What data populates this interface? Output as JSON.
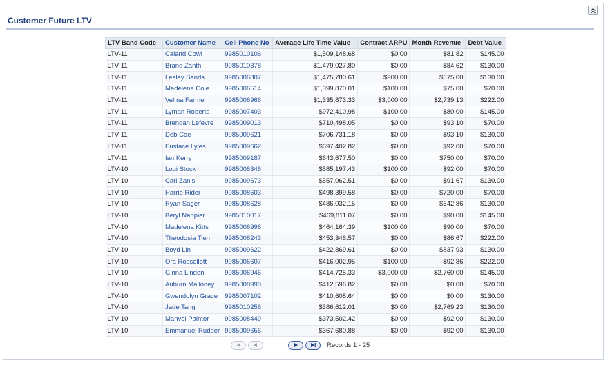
{
  "panel": {
    "title": "Customer Future LTV"
  },
  "table": {
    "headers": [
      "LTV Band Code",
      "Customer Name",
      "Cell Phone No",
      "Average Life Time Value",
      "Contract ARPU",
      "Month Revenue",
      "Debt Value"
    ],
    "rows": [
      [
        "LTV-11",
        "Caland Cowl",
        "9985010106",
        "$1,509,148.68",
        "$0.00",
        "$81.82",
        "$145.00"
      ],
      [
        "LTV-11",
        "Brand Zanth",
        "9985010378",
        "$1,479,027.80",
        "$0.00",
        "$84.62",
        "$130.00"
      ],
      [
        "LTV-11",
        "Lesley Sands",
        "9985006807",
        "$1,475,780.61",
        "$900.00",
        "$675.00",
        "$130.00"
      ],
      [
        "LTV-11",
        "Madelena Cole",
        "9985006514",
        "$1,399,870.01",
        "$100.00",
        "$75.00",
        "$70.00"
      ],
      [
        "LTV-11",
        "Velma Farmer",
        "9985006966",
        "$1,335,873.33",
        "$3,000.00",
        "$2,739.13",
        "$222.00"
      ],
      [
        "LTV-11",
        "Lyman Roberts",
        "9985007403",
        "$972,410.98",
        "$100.00",
        "$80.00",
        "$145.00"
      ],
      [
        "LTV-11",
        "Brendan Lefevre",
        "9985009013",
        "$710,498.05",
        "$0.00",
        "$93.10",
        "$70.00"
      ],
      [
        "LTV-11",
        "Deb Coe",
        "9985009621",
        "$706,731.18",
        "$0.00",
        "$93.10",
        "$130.00"
      ],
      [
        "LTV-11",
        "Eustace Lyles",
        "9985009662",
        "$697,402.82",
        "$0.00",
        "$92.00",
        "$70.00"
      ],
      [
        "LTV-11",
        "Ian Kerry",
        "9985009187",
        "$643,677.50",
        "$0.00",
        "$750.00",
        "$70.00"
      ],
      [
        "LTV-10",
        "Loui Stock",
        "9985006346",
        "$585,197.43",
        "$100.00",
        "$92.00",
        "$70.00"
      ],
      [
        "LTV-10",
        "Carl Zanis",
        "9985009673",
        "$557,062.51",
        "$0.00",
        "$91.67",
        "$130.00"
      ],
      [
        "LTV-10",
        "Harrie Rider",
        "9985008603",
        "$498,399.58",
        "$0.00",
        "$720.00",
        "$70.00"
      ],
      [
        "LTV-10",
        "Ryan Sager",
        "9985008628",
        "$486,032.15",
        "$0.00",
        "$642.86",
        "$130.00"
      ],
      [
        "LTV-10",
        "Beryl Nappier",
        "9985010017",
        "$469,811.07",
        "$0.00",
        "$90.00",
        "$145.00"
      ],
      [
        "LTV-10",
        "Madelena Kitts",
        "9985006996",
        "$464,164.39",
        "$100.00",
        "$90.00",
        "$70.00"
      ],
      [
        "LTV-10",
        "Theodosia Tien",
        "9985008243",
        "$453,346.57",
        "$0.00",
        "$86.67",
        "$222.00"
      ],
      [
        "LTV-10",
        "Boyd Lin",
        "9985009622",
        "$422,869.61",
        "$0.00",
        "$837.93",
        "$130.00"
      ],
      [
        "LTV-10",
        "Ora Rossellett",
        "9985006607",
        "$416,002.95",
        "$100.00",
        "$92.86",
        "$222.00"
      ],
      [
        "LTV-10",
        "Ginna Linden",
        "9985006946",
        "$414,725.33",
        "$3,000.00",
        "$2,760.00",
        "$145.00"
      ],
      [
        "LTV-10",
        "Auburn Malloney",
        "9985008990",
        "$412,596.82",
        "$0.00",
        "$0.00",
        "$70.00"
      ],
      [
        "LTV-10",
        "Gwendolyn Grace",
        "9985007102",
        "$410,608.64",
        "$0.00",
        "$0.00",
        "$130.00"
      ],
      [
        "LTV-10",
        "Jade Tang",
        "9985010256",
        "$386,612.01",
        "$0.00",
        "$2,769.23",
        "$130.00"
      ],
      [
        "LTV-10",
        "Manvel Paintor",
        "9985008449",
        "$373,502.42",
        "$0.00",
        "$92.00",
        "$130.00"
      ],
      [
        "LTV-10",
        "Emmanuel Rudder",
        "9985009656",
        "$367,680.88",
        "$0.00",
        "$92.00",
        "$130.00"
      ]
    ]
  },
  "pager": {
    "records_label": "Records 1 - 25"
  },
  "colors": {
    "title": "#1f3f7a",
    "link": "#24529a",
    "header_bg": "#e6ebf2",
    "rule": "#b8c6dd"
  }
}
